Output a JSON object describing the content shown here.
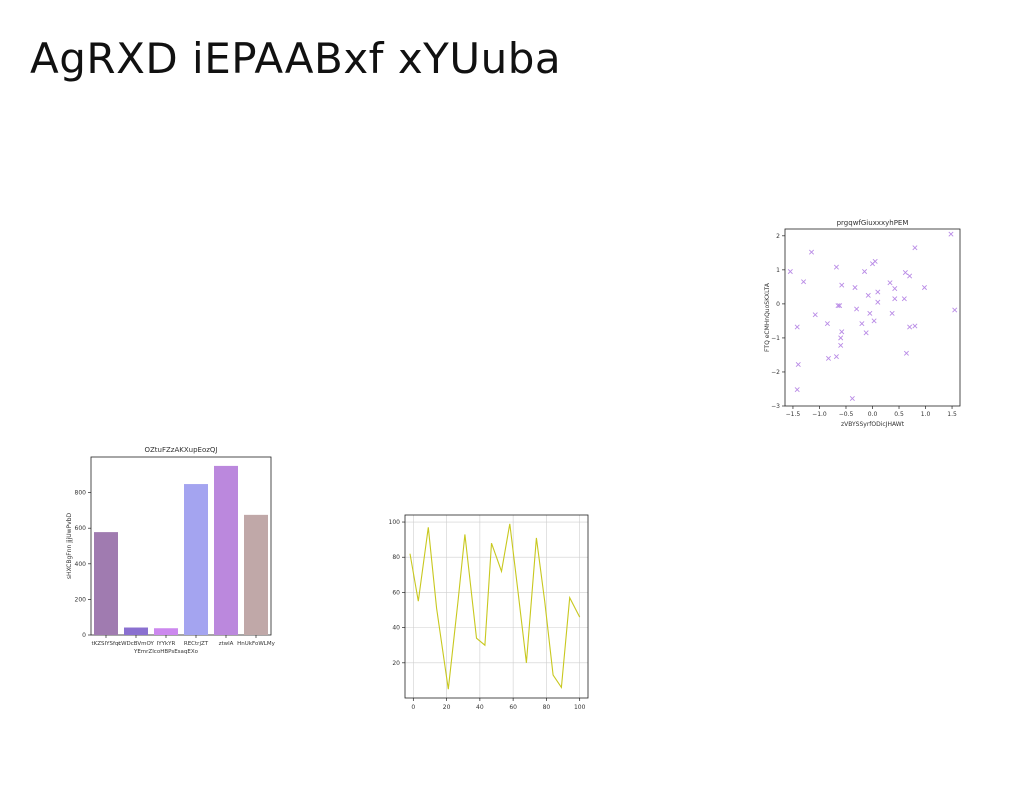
{
  "page": {
    "title": "AgRXD iEPAABxf xYUuba"
  },
  "chart_data": [
    {
      "id": "scatter",
      "type": "scatter",
      "title": "prgqwfGiuxxxyhPEM",
      "xlabel": "zVBYSSyrfODicJHAWt",
      "ylabel": "FTQ eCMHnQuoSKXLTA",
      "xlim": [
        -1.65,
        1.65
      ],
      "ylim": [
        -3,
        2.2
      ],
      "xticks": [
        -1.5,
        -1.0,
        -0.5,
        0.0,
        0.5,
        1.0,
        1.5
      ],
      "xtick_labels": [
        "−1.5",
        "−1.0",
        "−0.5",
        "0.0",
        "0.5",
        "1.0",
        "1.5"
      ],
      "yticks": [
        -3,
        -2,
        -1,
        0,
        1,
        2
      ],
      "ytick_labels": [
        "−3",
        "−2",
        "−1",
        "0",
        "1",
        "2"
      ],
      "marker": "x",
      "color": "#b98be6",
      "points": [
        [
          -1.55,
          0.95
        ],
        [
          -1.42,
          -0.68
        ],
        [
          -1.4,
          -1.78
        ],
        [
          -1.42,
          -2.52
        ],
        [
          -1.3,
          0.65
        ],
        [
          -1.15,
          1.52
        ],
        [
          -1.08,
          -0.32
        ],
        [
          -0.85,
          -0.58
        ],
        [
          -0.83,
          -1.6
        ],
        [
          -0.68,
          1.08
        ],
        [
          -0.68,
          -1.55
        ],
        [
          -0.65,
          -0.05
        ],
        [
          -0.62,
          -0.05
        ],
        [
          -0.58,
          0.55
        ],
        [
          -0.58,
          -0.82
        ],
        [
          -0.6,
          -1.0
        ],
        [
          -0.6,
          -1.22
        ],
        [
          -0.38,
          -2.78
        ],
        [
          -0.33,
          0.48
        ],
        [
          -0.3,
          -0.15
        ],
        [
          -0.2,
          -0.58
        ],
        [
          -0.15,
          0.95
        ],
        [
          -0.12,
          -0.85
        ],
        [
          -0.08,
          0.25
        ],
        [
          -0.05,
          -0.28
        ],
        [
          0.0,
          1.18
        ],
        [
          0.05,
          1.25
        ],
        [
          0.03,
          -0.5
        ],
        [
          0.1,
          0.35
        ],
        [
          0.1,
          0.05
        ],
        [
          0.33,
          0.62
        ],
        [
          0.37,
          -0.28
        ],
        [
          0.42,
          0.45
        ],
        [
          0.42,
          0.15
        ],
        [
          0.6,
          0.15
        ],
        [
          0.62,
          0.92
        ],
        [
          0.64,
          -1.45
        ],
        [
          0.7,
          -0.68
        ],
        [
          0.7,
          0.82
        ],
        [
          0.8,
          1.65
        ],
        [
          0.8,
          -0.65
        ],
        [
          0.98,
          0.48
        ],
        [
          1.48,
          2.05
        ],
        [
          1.55,
          -0.18
        ]
      ]
    },
    {
      "id": "bar",
      "type": "bar",
      "title": "OZtuFZzAKXupEozQJ",
      "xlabel": "",
      "ylabel": "sHXCBgFnn jjjUwPvbD",
      "ylim": [
        0,
        1000
      ],
      "yticks": [
        0,
        200,
        400,
        600,
        800
      ],
      "categories": [
        "tKZSIYSfqt",
        "cWDcBVmOY",
        "IYYkYR",
        "RECtrjZT",
        "ztwlA",
        "HnUkFoWLMy"
      ],
      "category_labels_row2": [
        "",
        "",
        "YEmrZIcoHBPsEsaqEXo",
        "",
        "",
        ""
      ],
      "values": [
        578,
        42,
        38,
        848,
        950,
        675
      ],
      "colors": [
        "#a07bb0",
        "#8a70d0",
        "#cc88ee",
        "#a4a4f0",
        "#bb88dd",
        "#c0a8a8"
      ]
    },
    {
      "id": "line",
      "type": "line",
      "title": "",
      "xlabel": "",
      "ylabel": "",
      "xlim": [
        -5,
        105
      ],
      "ylim": [
        0,
        104
      ],
      "xticks": [
        0,
        20,
        40,
        60,
        80,
        100
      ],
      "yticks": [
        20,
        40,
        60,
        80,
        100
      ],
      "grid": true,
      "color": "#c8c81e",
      "x": [
        -2,
        3,
        9,
        14,
        21,
        27,
        31,
        38,
        43,
        47,
        53,
        58,
        63,
        68,
        74,
        79,
        84,
        89,
        94,
        100
      ],
      "y": [
        82,
        55,
        97,
        51,
        5,
        56,
        93,
        34,
        30,
        88,
        72,
        99,
        60,
        20,
        91,
        55,
        13,
        6,
        57,
        46
      ]
    }
  ]
}
